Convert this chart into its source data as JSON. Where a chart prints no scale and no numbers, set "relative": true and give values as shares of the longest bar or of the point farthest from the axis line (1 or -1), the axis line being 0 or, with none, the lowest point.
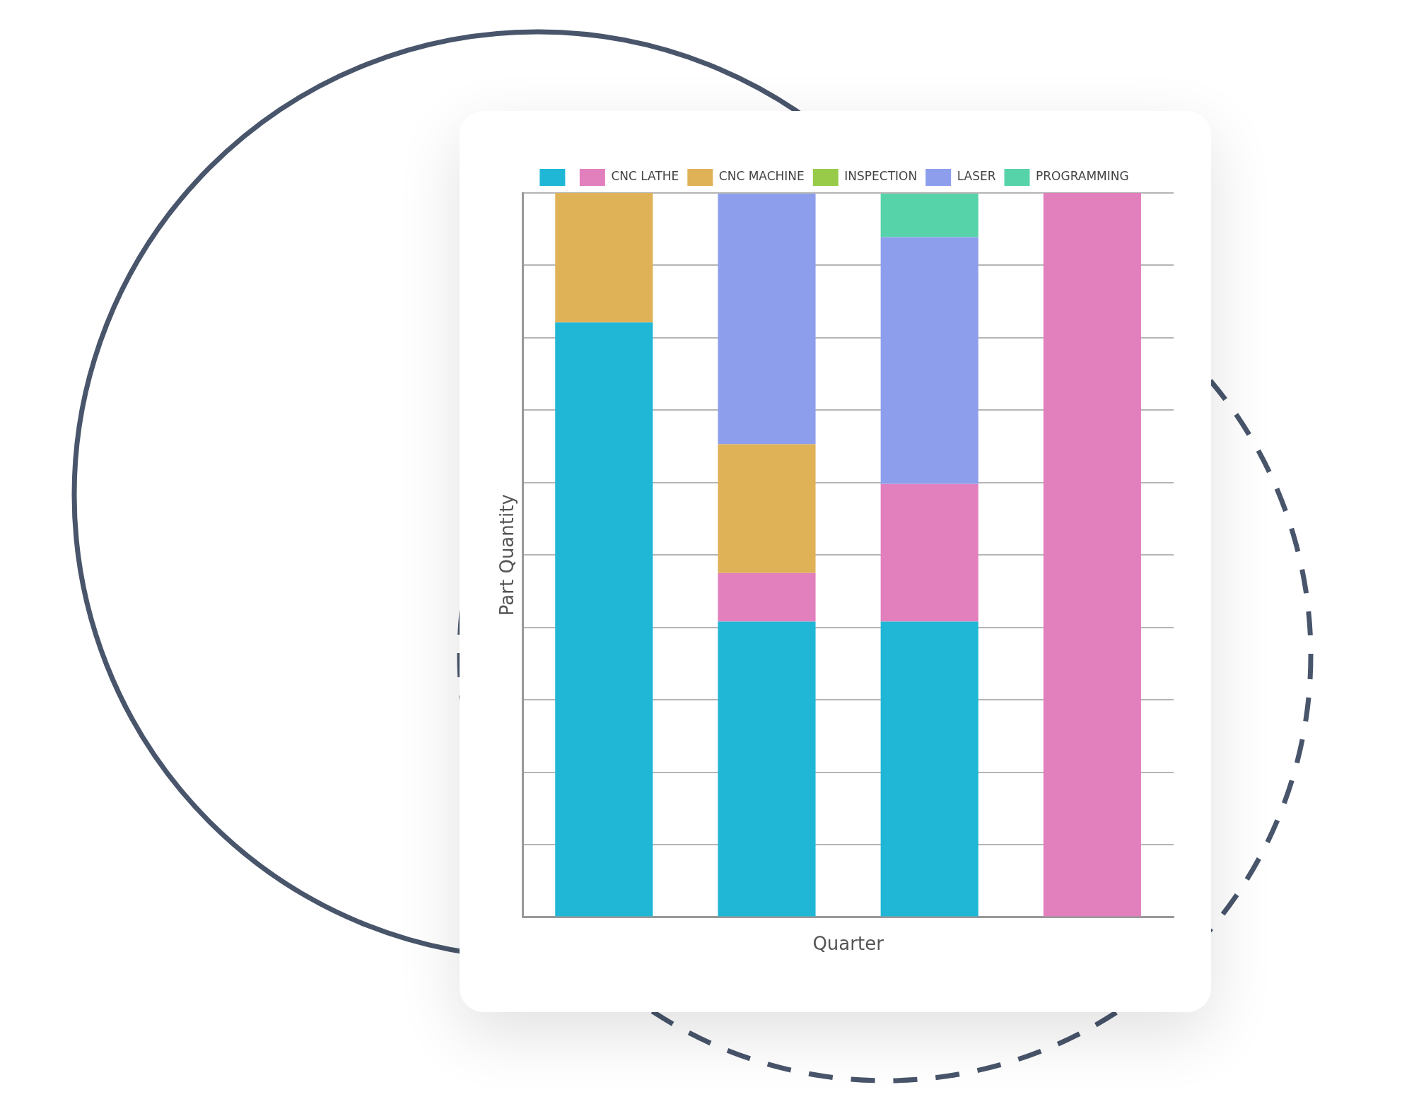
{
  "chart_data": {
    "type": "bar",
    "stacked": true,
    "relative": true,
    "xlabel": "Quarter",
    "ylabel": "Part Quantity",
    "categories": [
      null,
      null,
      null,
      null
    ],
    "legend": "top",
    "grid": "y",
    "series": [
      {
        "color": "#1fb7d5",
        "values": [
          0.821,
          0.408,
          0.408,
          null
        ]
      },
      {
        "name": "CNC LATHE",
        "color": "#e27fbd",
        "values": [
          null,
          0.067,
          0.19,
          1
        ]
      },
      {
        "name": "CNC MACHINE",
        "color": "#e0b257",
        "values": [
          0.179,
          0.178,
          null,
          null
        ]
      },
      {
        "name": "INSPECTION",
        "color": "#97cb48",
        "values": [
          null,
          null,
          null,
          null
        ]
      },
      {
        "name": "LASER",
        "color": "#8d9fec",
        "values": [
          null,
          0.346,
          0.341,
          null
        ]
      },
      {
        "name": "PROGRAMMING",
        "color": "#57d3a9",
        "values": [
          null,
          null,
          0.06,
          null
        ]
      }
    ]
  }
}
